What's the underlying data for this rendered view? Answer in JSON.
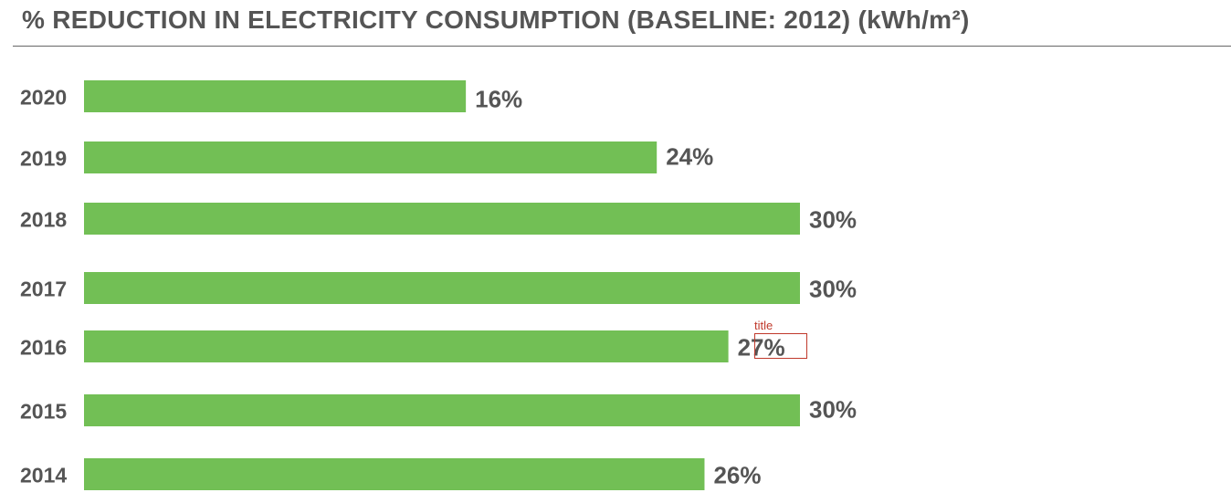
{
  "chart_data": {
    "type": "bar",
    "orientation": "horizontal",
    "title": "% REDUCTION IN ELECTRICITY CONSUMPTION (BASELINE: 2012) (kWh/m²)",
    "categories": [
      "2020",
      "2019",
      "2018",
      "2017",
      "2016",
      "2015",
      "2014"
    ],
    "values": [
      16,
      24,
      30,
      30,
      27,
      30,
      26
    ],
    "value_labels": [
      "16%",
      "24%",
      "30%",
      "30%",
      "27%",
      "30%",
      "26%"
    ],
    "xlabel": "",
    "ylabel": "",
    "xlim": [
      0,
      30
    ],
    "grid": false,
    "bar_color": "#72bf55",
    "label_color": "#555555"
  },
  "annotation": {
    "label": "title",
    "color": "#c0392b"
  }
}
